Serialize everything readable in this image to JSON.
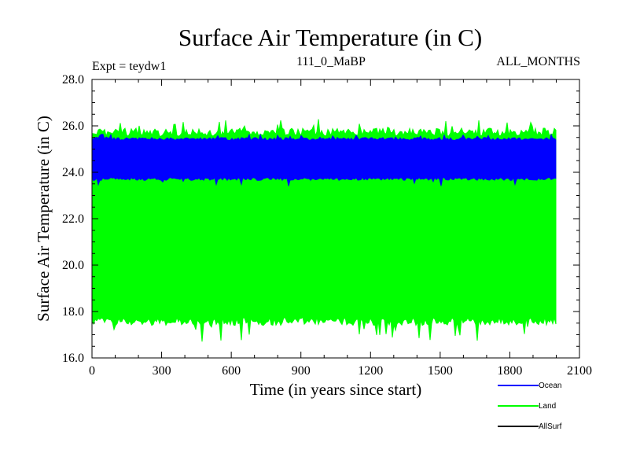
{
  "header": {
    "title": "Surface Air Temperature (in C)",
    "expt": "Expt = teydw1",
    "run": "111_0_MaBP",
    "months": "ALL_MONTHS"
  },
  "chart_data": {
    "type": "area",
    "title": "Surface Air Temperature (in C)",
    "xlabel": "Time (in years since start)",
    "ylabel": "Surface Air Temperature (in C)",
    "xlim": [
      0,
      2100
    ],
    "ylim": [
      16.0,
      28.0
    ],
    "x_ticks": [
      0,
      300,
      600,
      900,
      1200,
      1500,
      1800,
      2100
    ],
    "x_tick_labels": [
      "0",
      "300",
      "600",
      "900",
      "1200",
      "1500",
      "1800",
      "2100"
    ],
    "y_ticks": [
      16.0,
      18.0,
      20.0,
      22.0,
      24.0,
      26.0,
      28.0
    ],
    "y_tick_labels": [
      "16.0",
      "18.0",
      "20.0",
      "22.0",
      "24.0",
      "26.0",
      "28.0"
    ],
    "legend_position": "bottom-right",
    "series": [
      {
        "name": "Land",
        "color": "#00ff00",
        "x_range": [
          0,
          2000
        ],
        "band_low": 17.4,
        "band_high": 25.9,
        "min_spike": 16.7,
        "max_spike": 26.3
      },
      {
        "name": "Ocean",
        "color": "#0000ff",
        "x_range": [
          0,
          2000
        ],
        "band_low": 23.65,
        "band_high": 25.5,
        "min_spike": 23.4,
        "max_spike": 25.65
      },
      {
        "name": "AllSurf",
        "color": "#000000",
        "x_range": [
          0,
          2000
        ],
        "note": "not visible behind other series"
      }
    ]
  }
}
